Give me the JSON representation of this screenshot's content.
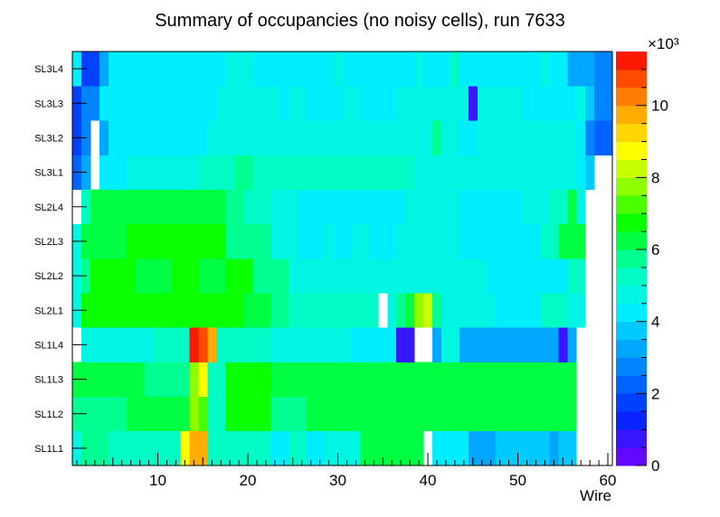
{
  "chart_data": {
    "type": "heatmap",
    "title": "Summary of occupancies (no noisy cells), run 7633",
    "xlabel": "Wire",
    "x_range": [
      0.5,
      60.5
    ],
    "x_ticks": [
      10,
      20,
      30,
      40,
      50,
      60
    ],
    "layers": [
      "SL1L1",
      "SL1L2",
      "SL1L3",
      "SL1L4",
      "SL2L1",
      "SL2L2",
      "SL2L3",
      "SL2L4",
      "SL3L1",
      "SL3L2",
      "SL3L3",
      "SL3L4"
    ],
    "z_multiplier_label": "×10³",
    "z_range": [
      0,
      11.5
    ],
    "z_ticks": [
      0,
      2,
      4,
      6,
      8,
      10
    ],
    "value_units": "thousands of hits",
    "grid": false,
    "rows": [
      {
        "layer": "SL1L1",
        "segments": [
          [
            1,
            1,
            4.8
          ],
          [
            2,
            4,
            5.6
          ],
          [
            5,
            7,
            5.0
          ],
          [
            8,
            12,
            5.4
          ],
          [
            13,
            13,
            8.6
          ],
          [
            14,
            15,
            9.9
          ],
          [
            16,
            22,
            5.0
          ],
          [
            23,
            24,
            4.4
          ],
          [
            25,
            26,
            5.0
          ],
          [
            27,
            28,
            4.2
          ],
          [
            29,
            32,
            4.8
          ],
          [
            33,
            38,
            6.2
          ],
          [
            39,
            39,
            6.0
          ],
          [
            40,
            40,
            null
          ],
          [
            41,
            44,
            4.0
          ],
          [
            45,
            47,
            3.4
          ],
          [
            48,
            53,
            3.9
          ],
          [
            54,
            54,
            3.2
          ],
          [
            55,
            56,
            3.9
          ],
          [
            57,
            60,
            null
          ]
        ]
      },
      {
        "layer": "SL1L2",
        "segments": [
          [
            1,
            2,
            5.8
          ],
          [
            3,
            6,
            5.5
          ],
          [
            7,
            13,
            6.3
          ],
          [
            14,
            14,
            7.6
          ],
          [
            15,
            15,
            7.2
          ],
          [
            16,
            17,
            5.4
          ],
          [
            18,
            22,
            6.7
          ],
          [
            23,
            26,
            5.8
          ],
          [
            27,
            56,
            6.3
          ],
          [
            57,
            60,
            null
          ]
        ]
      },
      {
        "layer": "SL1L3",
        "segments": [
          [
            1,
            8,
            6.0
          ],
          [
            9,
            13,
            5.5
          ],
          [
            14,
            14,
            7.8
          ],
          [
            15,
            15,
            8.8
          ],
          [
            16,
            17,
            5.4
          ],
          [
            18,
            22,
            6.7
          ],
          [
            23,
            25,
            6.2
          ],
          [
            26,
            56,
            6.5
          ],
          [
            57,
            60,
            null
          ]
        ]
      },
      {
        "layer": "SL1L4",
        "segments": [
          [
            1,
            1,
            null
          ],
          [
            2,
            9,
            4.8
          ],
          [
            10,
            13,
            5.1
          ],
          [
            14,
            14,
            11.2
          ],
          [
            15,
            15,
            10.8
          ],
          [
            16,
            16,
            9.6
          ],
          [
            17,
            17,
            5.0
          ],
          [
            18,
            22,
            5.2
          ],
          [
            23,
            31,
            4.5
          ],
          [
            32,
            33,
            4.0
          ],
          [
            34,
            36,
            4.4
          ],
          [
            37,
            38,
            0.6
          ],
          [
            39,
            40,
            null
          ],
          [
            41,
            41,
            3.3
          ],
          [
            42,
            43,
            4.6
          ],
          [
            44,
            54,
            3.2
          ],
          [
            55,
            55,
            0.6
          ],
          [
            56,
            56,
            3.3
          ],
          [
            57,
            60,
            null
          ]
        ]
      },
      {
        "layer": "SL2L1",
        "segments": [
          [
            1,
            1,
            4.8
          ],
          [
            2,
            9,
            6.6
          ],
          [
            10,
            19,
            6.9
          ],
          [
            20,
            22,
            6.0
          ],
          [
            23,
            24,
            5.6
          ],
          [
            25,
            30,
            5.0
          ],
          [
            31,
            34,
            5.0
          ],
          [
            35,
            35,
            null
          ],
          [
            36,
            36,
            4.6
          ],
          [
            37,
            37,
            5.8
          ],
          [
            38,
            38,
            6.2
          ],
          [
            39,
            39,
            7.8
          ],
          [
            40,
            40,
            8.4
          ],
          [
            41,
            41,
            5.6
          ],
          [
            42,
            44,
            4.8
          ],
          [
            45,
            47,
            4.8
          ],
          [
            48,
            52,
            4.4
          ],
          [
            53,
            55,
            5.4
          ],
          [
            56,
            57,
            4.8
          ],
          [
            58,
            60,
            null
          ]
        ]
      },
      {
        "layer": "SL2L2",
        "segments": [
          [
            1,
            1,
            4.8
          ],
          [
            2,
            2,
            5.8
          ],
          [
            3,
            7,
            6.6
          ],
          [
            8,
            11,
            6.2
          ],
          [
            12,
            14,
            6.6
          ],
          [
            15,
            17,
            6.4
          ],
          [
            18,
            20,
            6.6
          ],
          [
            21,
            24,
            5.8
          ],
          [
            25,
            25,
            4.6
          ],
          [
            26,
            30,
            4.9
          ],
          [
            31,
            46,
            4.8
          ],
          [
            47,
            55,
            4.4
          ],
          [
            56,
            57,
            5.0
          ],
          [
            58,
            60,
            null
          ]
        ]
      },
      {
        "layer": "SL2L3",
        "segments": [
          [
            1,
            1,
            4.8
          ],
          [
            2,
            4,
            6.4
          ],
          [
            5,
            6,
            6.2
          ],
          [
            7,
            17,
            6.6
          ],
          [
            18,
            22,
            5.6
          ],
          [
            23,
            25,
            4.8
          ],
          [
            26,
            28,
            4.2
          ],
          [
            29,
            29,
            4.9
          ],
          [
            30,
            31,
            4.2
          ],
          [
            32,
            33,
            4.8
          ],
          [
            34,
            36,
            4.4
          ],
          [
            37,
            38,
            4.8
          ],
          [
            39,
            43,
            4.6
          ],
          [
            44,
            52,
            4.3
          ],
          [
            53,
            54,
            5.0
          ],
          [
            55,
            57,
            6.0
          ],
          [
            58,
            60,
            null
          ]
        ]
      },
      {
        "layer": "SL2L4",
        "segments": [
          [
            1,
            1,
            null
          ],
          [
            2,
            2,
            5.0
          ],
          [
            3,
            8,
            6.4
          ],
          [
            9,
            10,
            6.0
          ],
          [
            11,
            17,
            6.4
          ],
          [
            18,
            19,
            5.8
          ],
          [
            20,
            22,
            5.4
          ],
          [
            23,
            25,
            4.6
          ],
          [
            26,
            33,
            4.4
          ],
          [
            34,
            37,
            4.4
          ],
          [
            38,
            43,
            4.8
          ],
          [
            44,
            50,
            4.3
          ],
          [
            51,
            53,
            4.7
          ],
          [
            54,
            55,
            5.0
          ],
          [
            56,
            56,
            6.0
          ],
          [
            57,
            57,
            4.7
          ],
          [
            58,
            60,
            null
          ]
        ]
      },
      {
        "layer": "SL3L1",
        "segments": [
          [
            1,
            1,
            2.0
          ],
          [
            2,
            2,
            3.0
          ],
          [
            3,
            3,
            null
          ],
          [
            4,
            6,
            4.4
          ],
          [
            7,
            11,
            4.9
          ],
          [
            12,
            14,
            4.6
          ],
          [
            15,
            18,
            5.0
          ],
          [
            19,
            20,
            5.6
          ],
          [
            21,
            37,
            5.0
          ],
          [
            38,
            38,
            5.4
          ],
          [
            39,
            39,
            4.9
          ],
          [
            40,
            46,
            4.6
          ],
          [
            47,
            56,
            4.7
          ],
          [
            57,
            57,
            4.2
          ],
          [
            58,
            58,
            3.5
          ],
          [
            59,
            60,
            null
          ]
        ]
      },
      {
        "layer": "SL3L2",
        "segments": [
          [
            1,
            1,
            1.5
          ],
          [
            2,
            2,
            2.6
          ],
          [
            3,
            3,
            null
          ],
          [
            4,
            4,
            3.1
          ],
          [
            5,
            9,
            4.4
          ],
          [
            10,
            11,
            4.1
          ],
          [
            12,
            13,
            4.4
          ],
          [
            14,
            15,
            4.1
          ],
          [
            16,
            40,
            4.9
          ],
          [
            41,
            41,
            5.8
          ],
          [
            42,
            43,
            4.6
          ],
          [
            44,
            45,
            4.4
          ],
          [
            46,
            56,
            4.6
          ],
          [
            57,
            57,
            4.2
          ],
          [
            58,
            58,
            2.6
          ],
          [
            59,
            60,
            2.4
          ]
        ]
      },
      {
        "layer": "SL3L3",
        "segments": [
          [
            1,
            1,
            1.6
          ],
          [
            2,
            3,
            2.8
          ],
          [
            4,
            16,
            4.2
          ],
          [
            17,
            23,
            4.6
          ],
          [
            24,
            24,
            4.2
          ],
          [
            25,
            26,
            4.6
          ],
          [
            27,
            27,
            4.2
          ],
          [
            28,
            30,
            4.4
          ],
          [
            31,
            32,
            4.7
          ],
          [
            33,
            36,
            4.4
          ],
          [
            37,
            44,
            4.6
          ],
          [
            45,
            45,
            0.9
          ],
          [
            46,
            50,
            4.7
          ],
          [
            51,
            56,
            4.4
          ],
          [
            57,
            57,
            4.5
          ],
          [
            58,
            58,
            3.9
          ],
          [
            59,
            60,
            2.8
          ]
        ]
      },
      {
        "layer": "SL3L4",
        "segments": [
          [
            1,
            1,
            4.0
          ],
          [
            2,
            3,
            1.7
          ],
          [
            4,
            4,
            3.1
          ],
          [
            5,
            17,
            4.3
          ],
          [
            18,
            20,
            4.8
          ],
          [
            21,
            29,
            4.3
          ],
          [
            30,
            30,
            4.6
          ],
          [
            31,
            36,
            4.4
          ],
          [
            37,
            38,
            4.3
          ],
          [
            39,
            39,
            4.8
          ],
          [
            40,
            42,
            4.3
          ],
          [
            43,
            43,
            5.0
          ],
          [
            44,
            52,
            4.3
          ],
          [
            53,
            53,
            4.8
          ],
          [
            54,
            55,
            4.3
          ],
          [
            56,
            56,
            3.3
          ],
          [
            57,
            57,
            3.3
          ],
          [
            58,
            58,
            3.2
          ],
          [
            59,
            60,
            2.8
          ]
        ]
      }
    ]
  }
}
